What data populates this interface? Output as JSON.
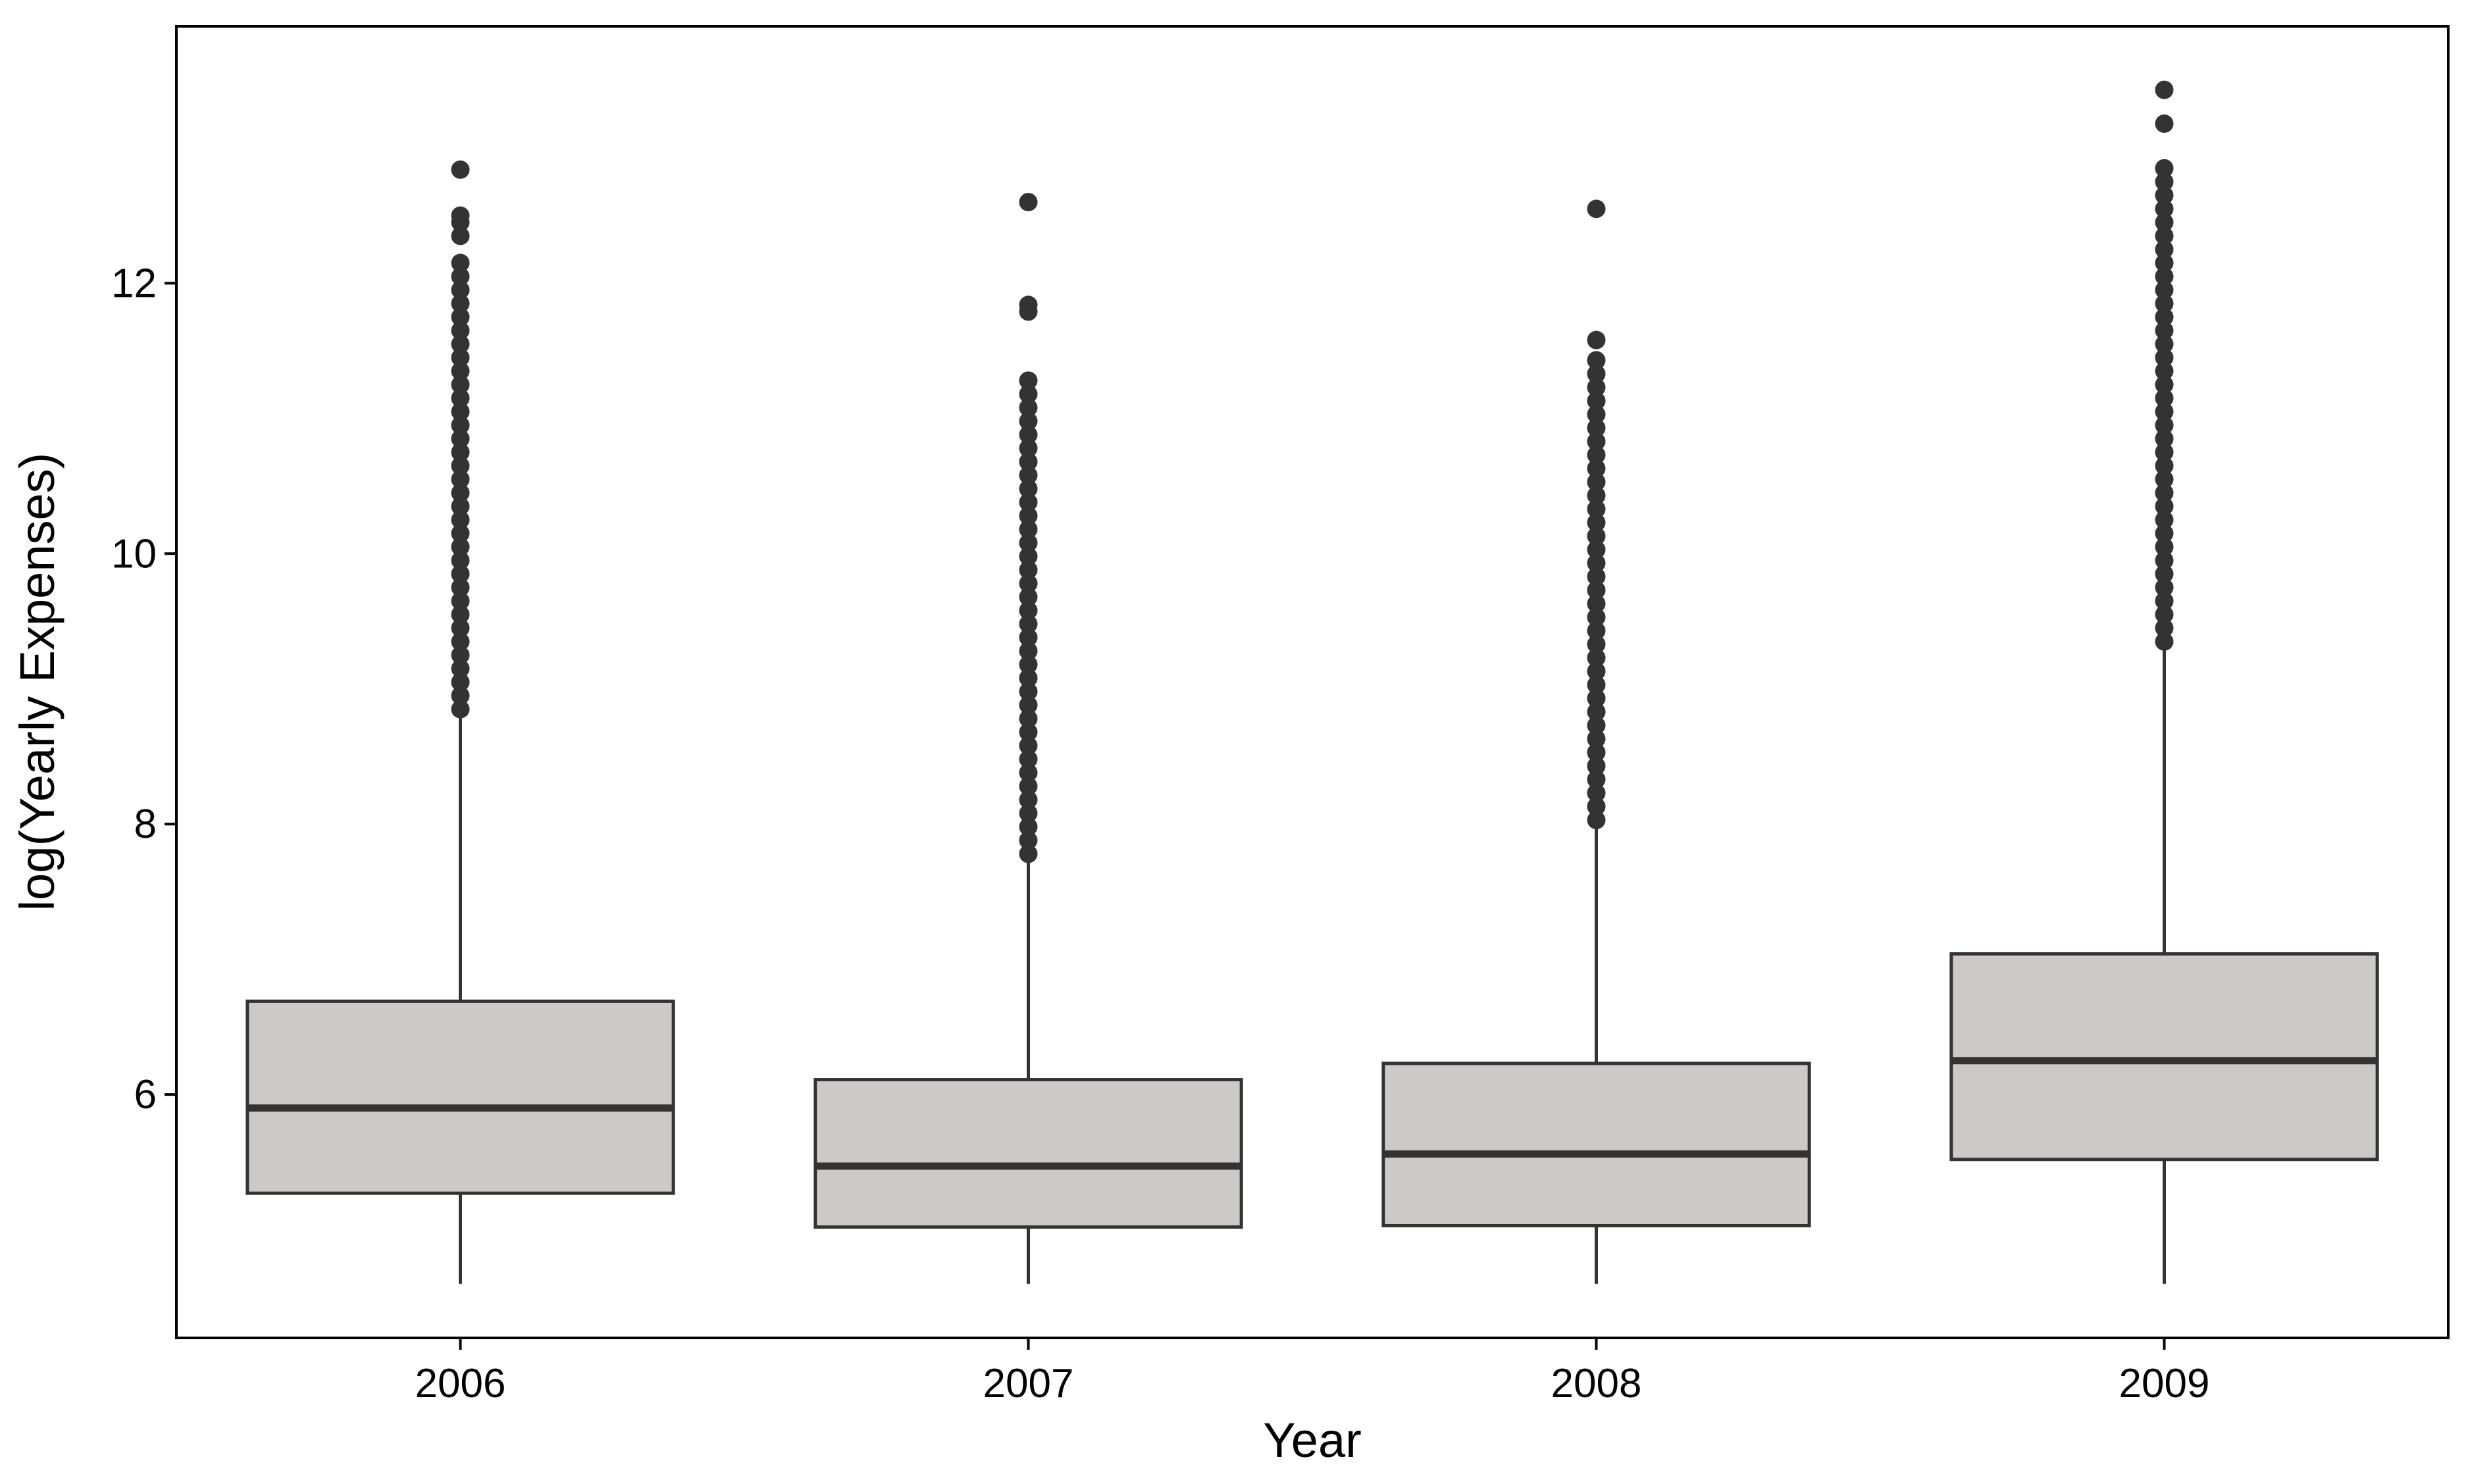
{
  "chart_data": {
    "type": "boxplot",
    "xlabel": "Year",
    "ylabel": "log(Yearly Expenses)",
    "categories": [
      "2006",
      "2007",
      "2008",
      "2009"
    ],
    "ylim": [
      4.2,
      13.9
    ],
    "yticks": [
      6,
      8,
      10,
      12
    ],
    "grid": false,
    "legend": "none",
    "colors": {
      "box_fill": "#cdc9c9",
      "stroke": "#333333"
    },
    "boxes": [
      {
        "category": "2006",
        "whisker_low": 4.6,
        "q1": 5.27,
        "median": 5.9,
        "q3": 6.69,
        "whisker_high": 8.8,
        "outliers": [
          8.85,
          8.95,
          9.05,
          9.15,
          9.25,
          9.35,
          9.45,
          9.55,
          9.65,
          9.75,
          9.85,
          9.95,
          10.05,
          10.15,
          10.25,
          10.35,
          10.45,
          10.55,
          10.65,
          10.75,
          10.85,
          10.95,
          11.05,
          11.15,
          11.25,
          11.35,
          11.45,
          11.55,
          11.65,
          11.75,
          11.85,
          11.95,
          12.05,
          12.15,
          12.35,
          12.45,
          12.5,
          12.84
        ]
      },
      {
        "category": "2007",
        "whisker_low": 4.6,
        "q1": 5.02,
        "median": 5.47,
        "q3": 6.11,
        "whisker_high": 7.72,
        "outliers": [
          7.78,
          7.88,
          7.98,
          8.08,
          8.18,
          8.28,
          8.38,
          8.48,
          8.58,
          8.68,
          8.78,
          8.88,
          8.98,
          9.08,
          9.18,
          9.28,
          9.38,
          9.48,
          9.58,
          9.68,
          9.78,
          9.88,
          9.98,
          10.08,
          10.18,
          10.28,
          10.38,
          10.48,
          10.58,
          10.68,
          10.78,
          10.88,
          10.98,
          11.08,
          11.18,
          11.28,
          11.79,
          11.84,
          12.6
        ]
      },
      {
        "category": "2008",
        "whisker_low": 4.6,
        "q1": 5.03,
        "median": 5.56,
        "q3": 6.23,
        "whisker_high": 8.0,
        "outliers": [
          8.03,
          8.13,
          8.23,
          8.33,
          8.43,
          8.53,
          8.63,
          8.73,
          8.83,
          8.93,
          9.03,
          9.13,
          9.23,
          9.33,
          9.43,
          9.53,
          9.63,
          9.73,
          9.83,
          9.93,
          10.03,
          10.13,
          10.23,
          10.33,
          10.43,
          10.53,
          10.63,
          10.73,
          10.83,
          10.93,
          11.03,
          11.13,
          11.23,
          11.33,
          11.43,
          11.58,
          12.55
        ]
      },
      {
        "category": "2009",
        "whisker_low": 4.6,
        "q1": 5.52,
        "median": 6.25,
        "q3": 7.04,
        "whisker_high": 9.3,
        "outliers": [
          9.35,
          9.45,
          9.55,
          9.65,
          9.75,
          9.85,
          9.95,
          10.05,
          10.15,
          10.25,
          10.35,
          10.45,
          10.55,
          10.65,
          10.75,
          10.85,
          10.95,
          11.05,
          11.15,
          11.25,
          11.35,
          11.45,
          11.55,
          11.65,
          11.75,
          11.85,
          11.95,
          12.05,
          12.15,
          12.25,
          12.35,
          12.45,
          12.55,
          12.65,
          12.75,
          12.85,
          13.18,
          13.43
        ]
      }
    ]
  }
}
